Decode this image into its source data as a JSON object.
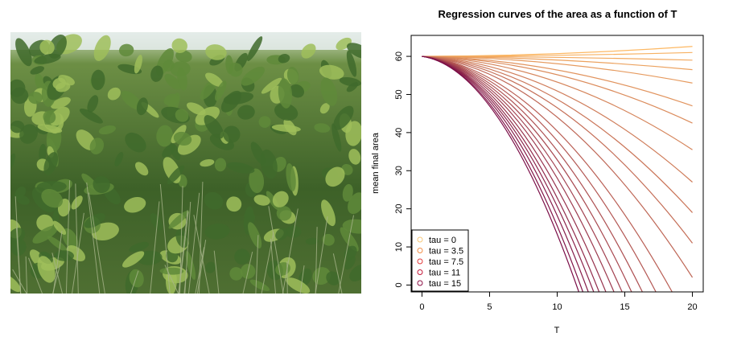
{
  "photo": {
    "icon": "knotweed-hedge-photo",
    "sky_color": "#e8eef0",
    "leaf_dark": "#3f6a2c",
    "leaf_mid": "#5f8a3a",
    "leaf_light": "#9fbe5a"
  },
  "chart_data": {
    "type": "line",
    "title": "Regression curves of the area as a function of T",
    "xlabel": "T",
    "ylabel": "mean final area",
    "xlim": [
      -0.8,
      20.8
    ],
    "ylim": [
      -1.8,
      65.5
    ],
    "xticks": [
      0,
      5,
      10,
      15,
      20
    ],
    "yticks": [
      0,
      10,
      20,
      30,
      40,
      50,
      60
    ],
    "grid": false,
    "legend_position": "bottom-left",
    "legend": [
      "tau = 0",
      "tau = 3.5",
      "tau = 7.5",
      "tau = 11",
      "tau = 15"
    ],
    "legend_colors": [
      "#f7c97a",
      "#f2904a",
      "#e33b3b",
      "#c41a3a",
      "#8b1045"
    ],
    "curve_start": {
      "x": 0,
      "y": 60
    },
    "series_colors_from": "#fdb863",
    "series_colors_to": "#7a0c46",
    "series_endpoints": [
      {
        "x": 20,
        "y": 62.6
      },
      {
        "x": 20,
        "y": 61.0
      },
      {
        "x": 20,
        "y": 59.0
      },
      {
        "x": 20,
        "y": 56.5
      },
      {
        "x": 20,
        "y": 53.0
      },
      {
        "x": 20,
        "y": 47.0
      },
      {
        "x": 20,
        "y": 42.5
      },
      {
        "x": 20,
        "y": 35.5
      },
      {
        "x": 20,
        "y": 27.0
      },
      {
        "x": 20,
        "y": 19.0
      },
      {
        "x": 20,
        "y": 11.0
      },
      {
        "x": 20,
        "y": 2.0
      },
      {
        "x": 18.5,
        "y": -1.8
      },
      {
        "x": 17.3,
        "y": -1.8
      },
      {
        "x": 16.3,
        "y": -1.8
      },
      {
        "x": 15.5,
        "y": -1.8
      },
      {
        "x": 14.8,
        "y": -1.8
      },
      {
        "x": 14.2,
        "y": -1.8
      },
      {
        "x": 13.6,
        "y": -1.8
      },
      {
        "x": 13.1,
        "y": -1.8
      },
      {
        "x": 12.7,
        "y": -1.8
      },
      {
        "x": 12.3,
        "y": -1.8
      },
      {
        "x": 11.9,
        "y": -1.8
      },
      {
        "x": 11.6,
        "y": -1.8
      }
    ]
  }
}
